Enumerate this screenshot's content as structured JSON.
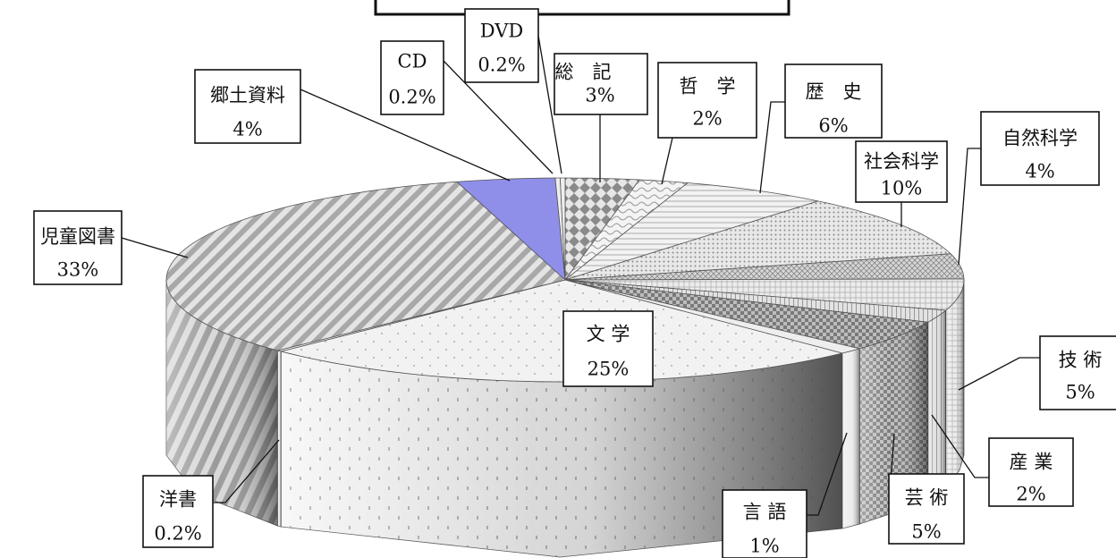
{
  "chart_data": {
    "type": "pie",
    "style": "3d-exploded-pie, hatched patterns, labeled callout boxes",
    "title": "",
    "slices": [
      {
        "name": "総　記",
        "value": 3,
        "label": "3%"
      },
      {
        "name": "哲　学",
        "value": 2,
        "label": "2%"
      },
      {
        "name": "歴　史",
        "value": 6,
        "label": "6%"
      },
      {
        "name": "社会科学",
        "value": 10,
        "label": "10%"
      },
      {
        "name": "自然科学",
        "value": 4,
        "label": "4%"
      },
      {
        "name": "技 術",
        "value": 5,
        "label": "5%"
      },
      {
        "name": "産 業",
        "value": 2,
        "label": "2%"
      },
      {
        "name": "芸 術",
        "value": 5,
        "label": "5%"
      },
      {
        "name": "言 語",
        "value": 1,
        "label": "1%"
      },
      {
        "name": "文 学",
        "value": 25,
        "label": "25%"
      },
      {
        "name": "洋書",
        "value": 0.2,
        "label": "0.2%"
      },
      {
        "name": "児童図書",
        "value": 33,
        "label": "33%"
      },
      {
        "name": "郷土資料",
        "value": 4,
        "label": "4%"
      },
      {
        "name": "CD",
        "value": 0.2,
        "label": "0.2%"
      },
      {
        "name": "DVD",
        "value": 0.2,
        "label": "0.2%"
      }
    ]
  }
}
